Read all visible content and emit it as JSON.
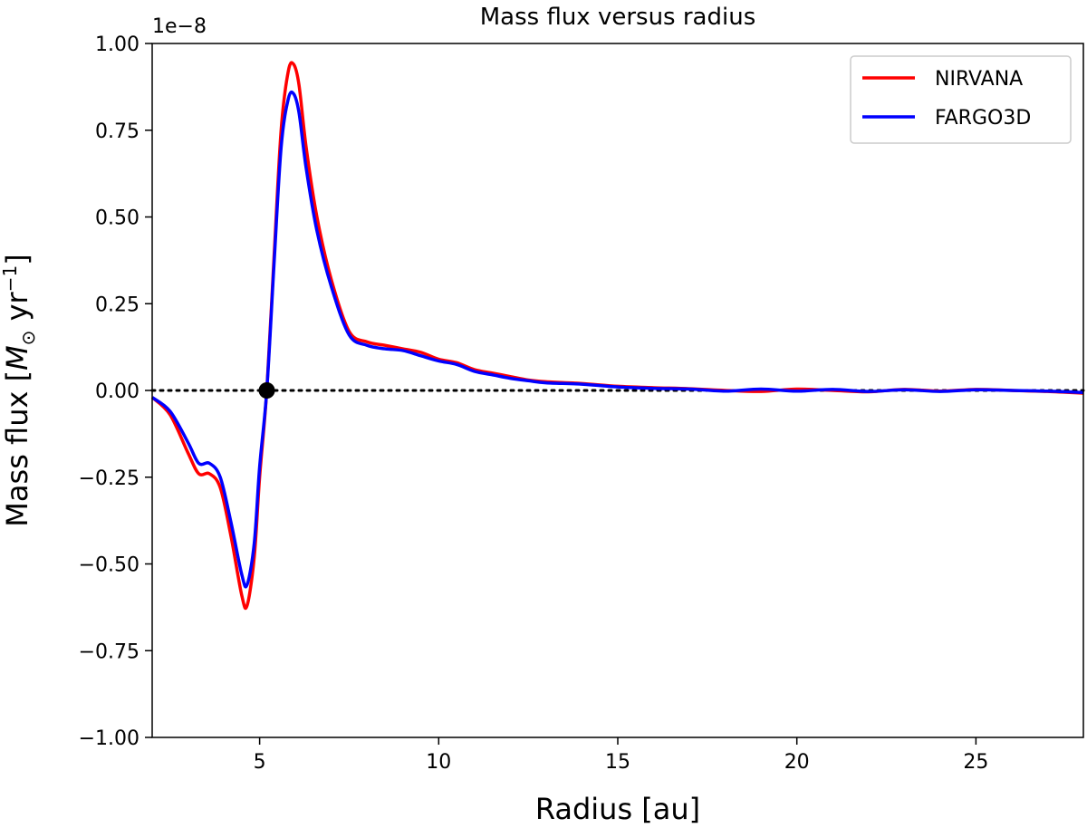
{
  "chart_data": {
    "type": "line",
    "title": "Mass flux versus radius",
    "xlabel": "Radius [au]",
    "ylabel": "Mass flux [M⊙ yr⁻¹]",
    "ylabel_parts": {
      "prefix": "Mass flux [",
      "symbol": "M",
      "subscript": "⊙",
      "unit": " yr",
      "exponent": "−1",
      "suffix": "]"
    },
    "offset_text": "1e−8",
    "xlim": [
      2,
      28
    ],
    "ylim": [
      -1.0,
      1.0
    ],
    "xticks": [
      5,
      10,
      15,
      20,
      25
    ],
    "xtick_labels": [
      "5",
      "10",
      "15",
      "20",
      "25"
    ],
    "yticks": [
      -1.0,
      -0.75,
      -0.5,
      -0.25,
      0.0,
      0.25,
      0.5,
      0.75,
      1.0
    ],
    "ytick_labels": [
      "−1.00",
      "−0.75",
      "−0.50",
      "−0.25",
      "0.00",
      "0.25",
      "0.50",
      "0.75",
      "1.00"
    ],
    "grid": false,
    "legend_position": "top-right",
    "reference_line": {
      "y": 0.0,
      "style": "dotted",
      "color": "#000000"
    },
    "marker_point": {
      "x": 5.2,
      "y": 0.0,
      "color": "#000000"
    },
    "series": [
      {
        "name": "NIRVANA",
        "color": "#ff0000",
        "x": [
          2.0,
          2.5,
          3.0,
          3.3,
          3.6,
          3.9,
          4.2,
          4.5,
          4.65,
          4.85,
          5.0,
          5.2,
          5.4,
          5.6,
          5.8,
          5.95,
          6.1,
          6.3,
          6.6,
          7.0,
          7.5,
          8.0,
          8.5,
          9.0,
          9.5,
          10.0,
          10.5,
          11.0,
          11.5,
          12.0,
          12.5,
          13.0,
          14.0,
          15.0,
          16.0,
          17.0,
          18.0,
          19.0,
          20.0,
          21.0,
          22.0,
          23.0,
          24.0,
          25.0,
          26.0,
          27.0,
          28.0
        ],
        "y": [
          -0.02,
          -0.07,
          -0.18,
          -0.24,
          -0.24,
          -0.28,
          -0.42,
          -0.59,
          -0.62,
          -0.48,
          -0.25,
          0.0,
          0.38,
          0.75,
          0.92,
          0.94,
          0.88,
          0.7,
          0.5,
          0.32,
          0.17,
          0.14,
          0.13,
          0.12,
          0.11,
          0.09,
          0.08,
          0.06,
          0.05,
          0.04,
          0.03,
          0.025,
          0.02,
          0.012,
          0.008,
          0.005,
          0.0,
          -0.003,
          0.004,
          0.0,
          -0.004,
          0.003,
          -0.002,
          0.003,
          0.0,
          -0.003,
          -0.008
        ]
      },
      {
        "name": "FARGO3D",
        "color": "#0000ff",
        "x": [
          2.0,
          2.5,
          3.0,
          3.3,
          3.6,
          3.9,
          4.2,
          4.5,
          4.65,
          4.85,
          5.0,
          5.2,
          5.4,
          5.6,
          5.8,
          5.95,
          6.1,
          6.3,
          6.6,
          7.0,
          7.5,
          8.0,
          8.5,
          9.0,
          9.5,
          10.0,
          10.5,
          11.0,
          11.5,
          12.0,
          12.5,
          13.0,
          14.0,
          15.0,
          16.0,
          17.0,
          18.0,
          19.0,
          20.0,
          21.0,
          22.0,
          23.0,
          24.0,
          25.0,
          26.0,
          27.0,
          28.0
        ],
        "y": [
          -0.02,
          -0.06,
          -0.15,
          -0.21,
          -0.21,
          -0.25,
          -0.38,
          -0.53,
          -0.56,
          -0.44,
          -0.22,
          0.0,
          0.36,
          0.7,
          0.84,
          0.855,
          0.8,
          0.64,
          0.46,
          0.3,
          0.16,
          0.13,
          0.12,
          0.115,
          0.1,
          0.085,
          0.075,
          0.055,
          0.045,
          0.035,
          0.028,
          0.022,
          0.018,
          0.01,
          0.006,
          0.004,
          -0.002,
          0.004,
          -0.002,
          0.003,
          -0.003,
          0.002,
          -0.003,
          0.002,
          0.0,
          -0.002,
          -0.006
        ]
      }
    ]
  }
}
